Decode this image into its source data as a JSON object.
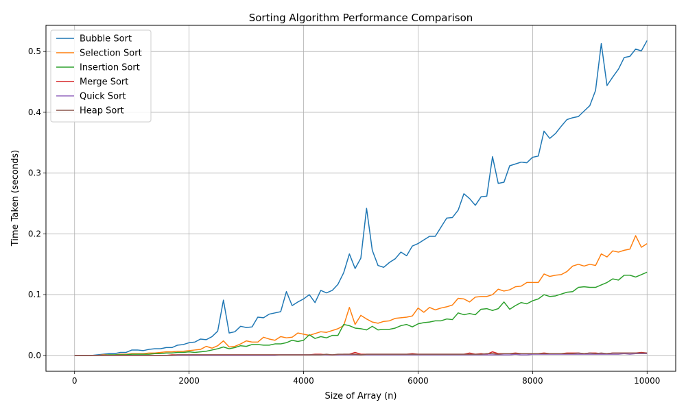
{
  "chart_data": {
    "type": "line",
    "title": "Sorting Algorithm Performance Comparison",
    "xlabel": "Size of Array (n)",
    "ylabel": "Time Taken (seconds)",
    "xlim": [
      -500,
      10500
    ],
    "ylim": [
      -0.026,
      0.543
    ],
    "xticks": [
      0,
      2000,
      4000,
      6000,
      8000,
      10000
    ],
    "yticks": [
      0.0,
      0.1,
      0.2,
      0.3,
      0.4,
      0.5
    ],
    "xtick_labels": [
      "0",
      "2000",
      "4000",
      "6000",
      "8000",
      "10000"
    ],
    "ytick_labels": [
      "0.0",
      "0.1",
      "0.2",
      "0.3",
      "0.4",
      "0.5"
    ],
    "grid": true,
    "legend_position": "upper-left",
    "x": [
      0,
      100,
      200,
      300,
      400,
      500,
      600,
      700,
      800,
      900,
      1000,
      1100,
      1200,
      1300,
      1400,
      1500,
      1600,
      1700,
      1800,
      1900,
      2000,
      2100,
      2200,
      2300,
      2400,
      2500,
      2600,
      2700,
      2800,
      2900,
      3000,
      3100,
      3200,
      3300,
      3400,
      3500,
      3600,
      3700,
      3800,
      3900,
      4000,
      4100,
      4200,
      4300,
      4400,
      4500,
      4600,
      4700,
      4800,
      4900,
      5000,
      5100,
      5200,
      5300,
      5400,
      5500,
      5600,
      5700,
      5800,
      5900,
      6000,
      6100,
      6200,
      6300,
      6400,
      6500,
      6600,
      6700,
      6800,
      6900,
      7000,
      7100,
      7200,
      7300,
      7400,
      7500,
      7600,
      7700,
      7800,
      7900,
      8000,
      8100,
      8200,
      8300,
      8400,
      8500,
      8600,
      8700,
      8800,
      8900,
      9000,
      9100,
      9200,
      9300,
      9400,
      9500,
      9600,
      9700,
      9800,
      9900,
      10000
    ],
    "series": [
      {
        "name": "Bubble Sort",
        "color": "#1f77b4",
        "values": [
          0,
          0,
          0,
          0,
          0.001,
          0.002,
          0.003,
          0.003,
          0.005,
          0.005,
          0.009,
          0.009,
          0.008,
          0.01,
          0.011,
          0.011,
          0.013,
          0.013,
          0.017,
          0.018,
          0.021,
          0.022,
          0.027,
          0.026,
          0.031,
          0.04,
          0.091,
          0.037,
          0.039,
          0.048,
          0.046,
          0.047,
          0.063,
          0.062,
          0.068,
          0.07,
          0.072,
          0.105,
          0.082,
          0.088,
          0.093,
          0.1,
          0.087,
          0.107,
          0.103,
          0.107,
          0.117,
          0.136,
          0.167,
          0.143,
          0.16,
          0.242,
          0.173,
          0.148,
          0.145,
          0.153,
          0.159,
          0.17,
          0.164,
          0.18,
          0.184,
          0.19,
          0.196,
          0.196,
          0.211,
          0.226,
          0.227,
          0.239,
          0.266,
          0.258,
          0.247,
          0.261,
          0.262,
          0.327,
          0.283,
          0.285,
          0.312,
          0.315,
          0.318,
          0.317,
          0.326,
          0.328,
          0.369,
          0.357,
          0.365,
          0.377,
          0.388,
          0.391,
          0.393,
          0.402,
          0.411,
          0.436,
          0.513,
          0.444,
          0.458,
          0.471,
          0.49,
          0.492,
          0.504,
          0.501,
          0.518
        ]
      },
      {
        "name": "Selection Sort",
        "color": "#ff7f0e",
        "values": [
          0,
          0,
          0,
          0,
          0,
          0.001,
          0.001,
          0.001,
          0.002,
          0.002,
          0.003,
          0.003,
          0.003,
          0.004,
          0.004,
          0.005,
          0.006,
          0.006,
          0.007,
          0.007,
          0.008,
          0.009,
          0.01,
          0.015,
          0.012,
          0.016,
          0.024,
          0.014,
          0.015,
          0.019,
          0.024,
          0.022,
          0.022,
          0.03,
          0.027,
          0.025,
          0.031,
          0.029,
          0.03,
          0.037,
          0.035,
          0.033,
          0.036,
          0.039,
          0.038,
          0.041,
          0.044,
          0.049,
          0.079,
          0.051,
          0.066,
          0.06,
          0.055,
          0.053,
          0.056,
          0.057,
          0.061,
          0.062,
          0.063,
          0.065,
          0.078,
          0.071,
          0.079,
          0.075,
          0.078,
          0.08,
          0.083,
          0.094,
          0.093,
          0.088,
          0.096,
          0.097,
          0.097,
          0.1,
          0.109,
          0.106,
          0.108,
          0.113,
          0.114,
          0.12,
          0.12,
          0.12,
          0.134,
          0.13,
          0.132,
          0.133,
          0.138,
          0.147,
          0.15,
          0.147,
          0.15,
          0.148,
          0.167,
          0.162,
          0.172,
          0.17,
          0.173,
          0.175,
          0.197,
          0.178,
          0.184
        ]
      },
      {
        "name": "Insertion Sort",
        "color": "#2ca02c",
        "values": [
          0,
          0,
          0,
          0,
          0,
          0,
          0.001,
          0.001,
          0.001,
          0.001,
          0.002,
          0.002,
          0.002,
          0.002,
          0.003,
          0.003,
          0.004,
          0.004,
          0.005,
          0.005,
          0.006,
          0.005,
          0.006,
          0.007,
          0.009,
          0.011,
          0.014,
          0.011,
          0.013,
          0.016,
          0.015,
          0.018,
          0.018,
          0.017,
          0.017,
          0.019,
          0.019,
          0.021,
          0.025,
          0.023,
          0.025,
          0.034,
          0.028,
          0.031,
          0.029,
          0.033,
          0.033,
          0.051,
          0.049,
          0.045,
          0.044,
          0.042,
          0.048,
          0.042,
          0.043,
          0.043,
          0.045,
          0.049,
          0.051,
          0.047,
          0.052,
          0.054,
          0.055,
          0.057,
          0.057,
          0.06,
          0.059,
          0.07,
          0.067,
          0.069,
          0.067,
          0.076,
          0.077,
          0.074,
          0.077,
          0.088,
          0.076,
          0.082,
          0.087,
          0.085,
          0.09,
          0.093,
          0.1,
          0.097,
          0.098,
          0.101,
          0.104,
          0.105,
          0.112,
          0.113,
          0.112,
          0.112,
          0.116,
          0.12,
          0.126,
          0.124,
          0.132,
          0.132,
          0.129,
          0.133,
          0.137
        ]
      },
      {
        "name": "Merge Sort",
        "color": "#d62728",
        "values": [
          0,
          0,
          0,
          0,
          0,
          0,
          0,
          0,
          0,
          0,
          0,
          0,
          0,
          0,
          0,
          0,
          0,
          0.001,
          0.001,
          0.001,
          0.001,
          0.001,
          0.001,
          0.001,
          0.001,
          0.001,
          0.001,
          0.001,
          0.001,
          0.001,
          0.001,
          0.001,
          0.001,
          0.001,
          0.001,
          0.001,
          0.001,
          0.001,
          0.001,
          0.001,
          0.001,
          0.001,
          0.002,
          0.002,
          0.001,
          0.001,
          0.001,
          0.002,
          0.002,
          0.005,
          0.002,
          0.002,
          0.002,
          0.002,
          0.002,
          0.002,
          0.002,
          0.002,
          0.002,
          0.003,
          0.002,
          0.002,
          0.002,
          0.002,
          0.002,
          0.002,
          0.002,
          0.002,
          0.002,
          0.004,
          0.002,
          0.003,
          0.002,
          0.006,
          0.003,
          0.003,
          0.003,
          0.004,
          0.003,
          0.003,
          0.003,
          0.003,
          0.004,
          0.003,
          0.003,
          0.003,
          0.004,
          0.004,
          0.004,
          0.003,
          0.004,
          0.004,
          0.003,
          0.003,
          0.004,
          0.004,
          0.004,
          0.004,
          0.004,
          0.005,
          0.004
        ]
      },
      {
        "name": "Quick Sort",
        "color": "#9467bd",
        "values": [
          0,
          0,
          0,
          0,
          0,
          0,
          0,
          0,
          0,
          0,
          0,
          0,
          0,
          0,
          0,
          0,
          0,
          0,
          0,
          0,
          0,
          0,
          0,
          0,
          0,
          0,
          0,
          0,
          0,
          0,
          0,
          0,
          0,
          0,
          0,
          0,
          0.001,
          0.001,
          0.001,
          0.001,
          0.001,
          0.001,
          0.001,
          0.001,
          0.001,
          0.001,
          0.001,
          0.001,
          0.001,
          0.001,
          0.001,
          0.001,
          0.001,
          0.001,
          0.001,
          0.001,
          0.001,
          0.001,
          0.001,
          0.001,
          0.001,
          0.001,
          0.001,
          0.001,
          0.001,
          0.001,
          0.001,
          0.001,
          0.001,
          0.001,
          0.001,
          0.001,
          0.001,
          0.001,
          0.001,
          0.001,
          0.001,
          0.002,
          0.001,
          0.001,
          0.002,
          0.002,
          0.002,
          0.002,
          0.002,
          0.002,
          0.002,
          0.002,
          0.002,
          0.002,
          0.002,
          0.002,
          0.002,
          0.002,
          0.002,
          0.002,
          0.003,
          0.002,
          0.003,
          0.003,
          0.003
        ]
      },
      {
        "name": "Heap Sort",
        "color": "#8c564b",
        "values": [
          0,
          0,
          0,
          0,
          0,
          0,
          0,
          0,
          0,
          0,
          0,
          0,
          0,
          0,
          0,
          0,
          0,
          0,
          0.001,
          0.001,
          0.001,
          0.001,
          0.001,
          0.001,
          0.001,
          0.001,
          0.001,
          0.001,
          0.001,
          0.001,
          0.001,
          0.001,
          0.001,
          0.001,
          0.001,
          0.001,
          0.001,
          0.001,
          0.001,
          0.001,
          0.001,
          0.001,
          0.001,
          0.001,
          0.002,
          0.001,
          0.002,
          0.002,
          0.002,
          0.002,
          0.001,
          0.002,
          0.002,
          0.002,
          0.002,
          0.002,
          0.002,
          0.002,
          0.002,
          0.002,
          0.002,
          0.002,
          0.002,
          0.002,
          0.002,
          0.002,
          0.002,
          0.002,
          0.002,
          0.002,
          0.002,
          0.002,
          0.003,
          0.003,
          0.002,
          0.003,
          0.003,
          0.003,
          0.003,
          0.003,
          0.003,
          0.003,
          0.003,
          0.003,
          0.003,
          0.003,
          0.003,
          0.003,
          0.004,
          0.003,
          0.004,
          0.003,
          0.004,
          0.003,
          0.004,
          0.004,
          0.004,
          0.004,
          0.004,
          0.004,
          0.004
        ]
      }
    ]
  }
}
